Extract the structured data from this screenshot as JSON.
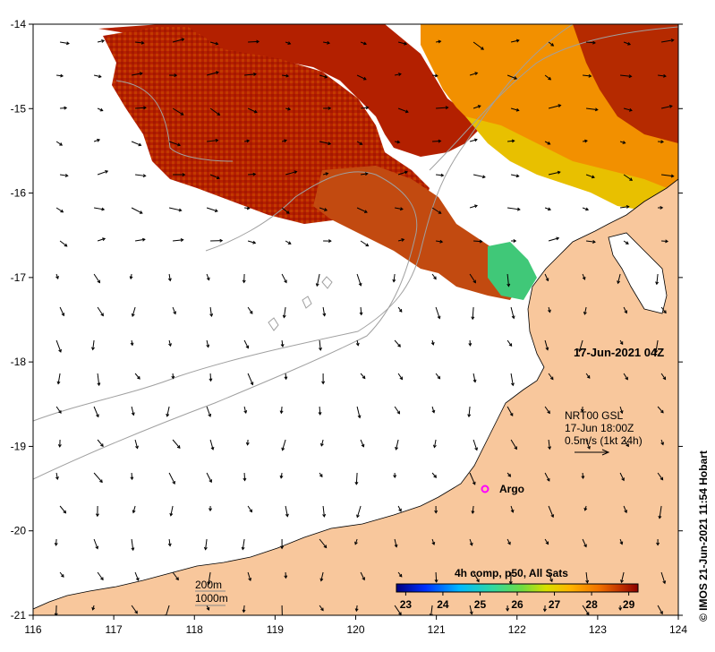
{
  "map": {
    "lon_ticks": [
      116,
      117,
      118,
      119,
      120,
      121,
      122,
      123,
      124
    ],
    "lat_ticks": [
      -14,
      -15,
      -16,
      -17,
      -18,
      -19,
      -20,
      -21
    ],
    "lon_range": [
      116,
      124
    ],
    "lat_range": [
      -21,
      -14
    ],
    "land_color": "#f8c79c",
    "ocean_color": "#ffffff",
    "isobath_color": "#a0a0a0"
  },
  "annotations": {
    "date_time": "17-Jun-2021 04Z",
    "current_label_line1": "NRT00 GSL",
    "current_label_line2": "17-Jun 18:00Z",
    "current_label_line3": "0.5m/s (1kt 24h)",
    "argo_label": "Argo",
    "depth_200": "200m",
    "depth_1000": "1000m",
    "credit": "© IMOS 21-Jun-2021 11:54 Hobart"
  },
  "argo": {
    "lon": 121.63,
    "lat": -19.5,
    "color": "#ff00ff"
  },
  "colorbar": {
    "title": "4h comp, p50, All Sats",
    "ticks": [
      "23",
      "24",
      "25",
      "26",
      "27",
      "28",
      "29"
    ],
    "range": [
      22.75,
      29.25
    ],
    "stops": [
      "#00007f",
      "#0040ff",
      "#00c0ff",
      "#40e0a0",
      "#80e040",
      "#e0e000",
      "#ffb000",
      "#ff7000",
      "#c03000",
      "#8b0000"
    ]
  }
}
